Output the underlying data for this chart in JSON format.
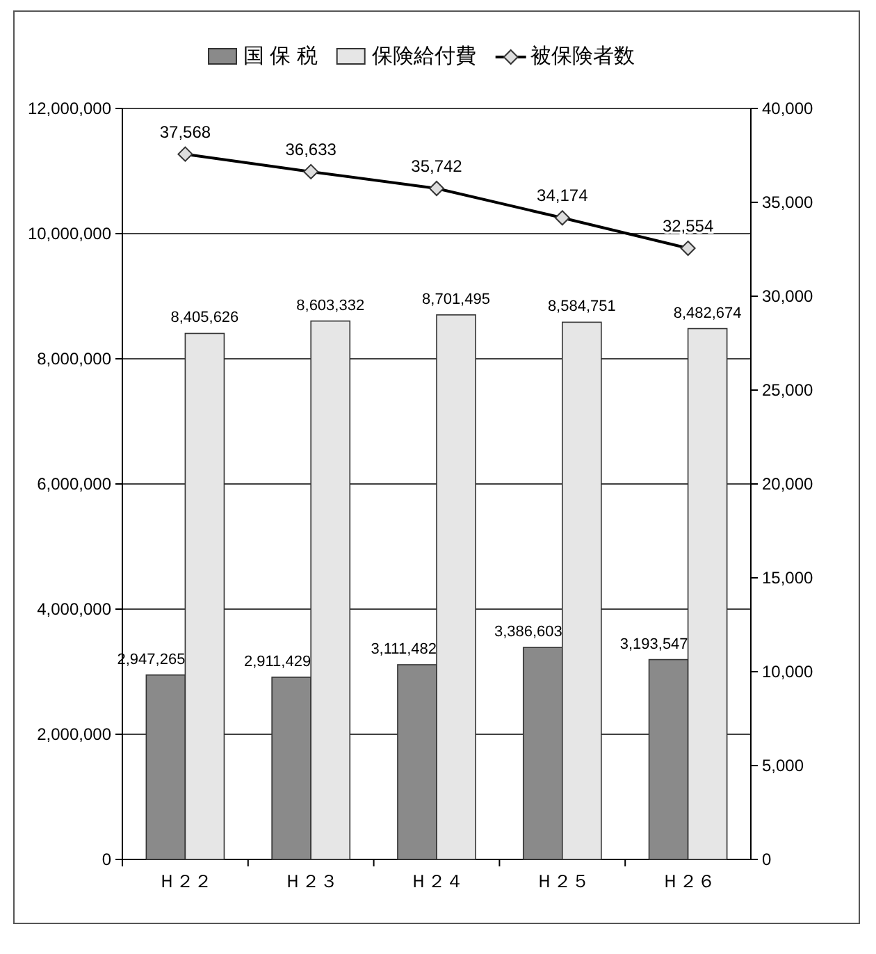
{
  "chart_data": {
    "type": "bar",
    "categories": [
      "Ｈ２２",
      "Ｈ２３",
      "Ｈ２４",
      "Ｈ２５",
      "Ｈ２６"
    ],
    "series": [
      {
        "name": "国 保 税",
        "color": "#8a8a8a",
        "values": [
          2947265,
          2911429,
          3111482,
          3386603,
          3193547
        ],
        "value_labels": [
          "2,947,265",
          "2,911,429",
          "3,111,482",
          "3,386,603",
          "3,193,547"
        ]
      },
      {
        "name": "保険給付費",
        "color": "#e6e6e6",
        "values": [
          8405626,
          8603332,
          8701495,
          8584751,
          8482674
        ],
        "value_labels": [
          "8,405,626",
          "8,603,332",
          "8,701,495",
          "8,584,751",
          "8,482,674"
        ]
      },
      {
        "name": "被保険者数",
        "type": "line",
        "axis": "y2",
        "color": "#000000",
        "marker": "diamond",
        "values": [
          37568,
          36633,
          35742,
          34174,
          32554
        ],
        "value_labels": [
          "37,568",
          "36,633",
          "35,742",
          "34,174",
          "32,554"
        ]
      }
    ],
    "ylim": [
      0,
      12000000
    ],
    "yticks": [
      0,
      {
        "value": 2000000,
        "label": "2,000,000"
      },
      {
        "value": 4000000,
        "label": "4,000,000"
      },
      {
        "value": 6000000,
        "label": "6,000,000"
      },
      {
        "value": 8000000,
        "label": "8,000,000"
      },
      {
        "value": 10000000,
        "label": "10,000,000"
      },
      {
        "value": 12000000,
        "label": "12,000,000"
      }
    ],
    "y2lim": [
      0,
      40000
    ],
    "y2ticks": [
      0,
      {
        "value": 5000,
        "label": "5,000"
      },
      {
        "value": 10000,
        "label": "10,000"
      },
      {
        "value": 15000,
        "label": "15,000"
      },
      {
        "value": 20000,
        "label": "20,000"
      },
      {
        "value": 25000,
        "label": "25,000"
      },
      {
        "value": 30000,
        "label": "30,000"
      },
      {
        "value": 35000,
        "label": "35,000"
      },
      {
        "value": 40000,
        "label": "40,000"
      }
    ],
    "grid": "y",
    "legend": "top"
  }
}
